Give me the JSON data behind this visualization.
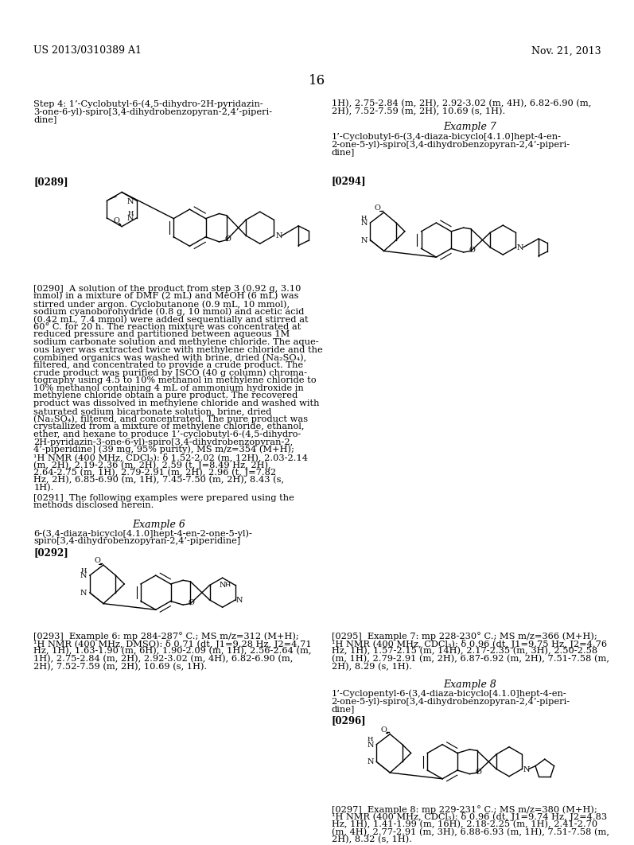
{
  "bg_color": "#ffffff",
  "header_left": "US 2013/0310389 A1",
  "header_right": "Nov. 21, 2013",
  "page_number": "16"
}
